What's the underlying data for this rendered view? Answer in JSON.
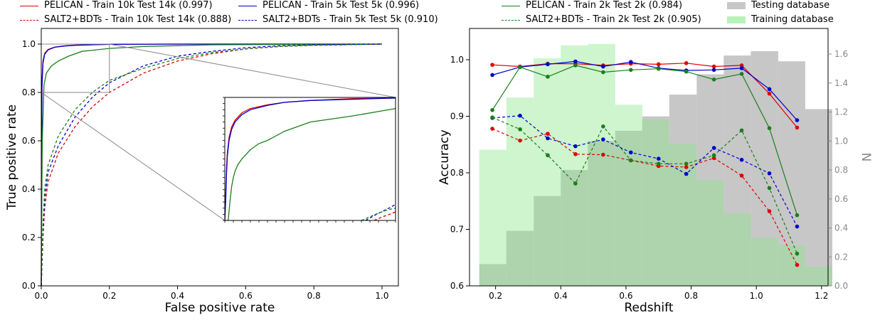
{
  "legend_left": [
    {
      "label": "PELICAN - Train 10k Test 14k (0.997)",
      "color": "#e00000",
      "style": "solid"
    },
    {
      "label": "SALT2+BDTs - Train 10k Test 14k (0.888)",
      "color": "#e00000",
      "style": "dashed"
    },
    {
      "label": "PELICAN - Train 5k Test 5k (0.996)",
      "color": "#0000d0",
      "style": "solid"
    },
    {
      "label": "SALT2+BDTs - Train 5k Test 5k (0.910)",
      "color": "#0000d0",
      "style": "dashed"
    },
    {
      "label": "PELICAN - Train 2k Test 2k (0.984)",
      "color": "#1a7f1a",
      "style": "solid"
    },
    {
      "label": "SALT2+BDTs - Train 2k Test 2k (0.905)",
      "color": "#1a7f1a",
      "style": "dashed"
    }
  ],
  "legend_right": [
    {
      "label": "Testing database",
      "color": "#c8c8c8"
    },
    {
      "label": "Training database",
      "color": "#b8f2b8"
    }
  ],
  "chart_data": [
    {
      "type": "line",
      "xlabel": "False positive rate",
      "ylabel": "True positive rate",
      "xlim": [
        0.0,
        1.05
      ],
      "ylim": [
        0.0,
        1.05
      ],
      "xticks": [
        "0.0",
        "0.2",
        "0.4",
        "0.6",
        "0.8",
        "1.0"
      ],
      "yticks": [
        "0.0",
        "0.2",
        "0.4",
        "0.6",
        "0.8",
        "1.0"
      ],
      "zoom_box": {
        "x": [
          0.0,
          0.2
        ],
        "y": [
          0.8,
          1.0
        ]
      },
      "series": [
        {
          "color": "#e00000",
          "style": "solid",
          "x": [
            0,
            0.002,
            0.005,
            0.01,
            0.02,
            0.04,
            0.07,
            0.1,
            0.15,
            0.2,
            0.4,
            1.0
          ],
          "y": [
            0,
            0.85,
            0.93,
            0.962,
            0.978,
            0.988,
            0.993,
            0.996,
            0.998,
            0.999,
            1.0,
            1.0
          ]
        },
        {
          "color": "#0000d0",
          "style": "solid",
          "x": [
            0,
            0.002,
            0.005,
            0.01,
            0.02,
            0.04,
            0.07,
            0.1,
            0.15,
            0.2,
            0.4,
            1.0
          ],
          "y": [
            0,
            0.82,
            0.92,
            0.958,
            0.976,
            0.987,
            0.992,
            0.995,
            0.997,
            0.999,
            1.0,
            1.0
          ]
        },
        {
          "color": "#1a7f1a",
          "style": "solid",
          "x": [
            0,
            0.003,
            0.008,
            0.015,
            0.03,
            0.05,
            0.08,
            0.12,
            0.2,
            0.3,
            0.5,
            1.0
          ],
          "y": [
            0,
            0.6,
            0.83,
            0.88,
            0.91,
            0.93,
            0.95,
            0.97,
            0.982,
            0.99,
            0.997,
            1.0
          ]
        },
        {
          "color": "#e00000",
          "style": "dashed",
          "x": [
            0,
            0.005,
            0.01,
            0.02,
            0.05,
            0.1,
            0.15,
            0.2,
            0.3,
            0.4,
            0.5,
            0.6,
            0.7,
            0.8,
            1.0
          ],
          "y": [
            0,
            0.2,
            0.32,
            0.43,
            0.55,
            0.66,
            0.74,
            0.8,
            0.88,
            0.93,
            0.96,
            0.98,
            0.99,
            0.995,
            1.0
          ]
        },
        {
          "color": "#0000d0",
          "style": "dashed",
          "x": [
            0,
            0.005,
            0.01,
            0.02,
            0.05,
            0.1,
            0.15,
            0.2,
            0.3,
            0.4,
            0.5,
            0.6,
            0.7,
            0.8,
            1.0
          ],
          "y": [
            0,
            0.22,
            0.36,
            0.47,
            0.58,
            0.7,
            0.78,
            0.84,
            0.91,
            0.95,
            0.97,
            0.985,
            0.993,
            0.997,
            1.0
          ]
        },
        {
          "color": "#1a7f1a",
          "style": "dashed",
          "x": [
            0,
            0.005,
            0.01,
            0.02,
            0.05,
            0.1,
            0.15,
            0.2,
            0.3,
            0.4,
            0.5,
            0.6,
            0.7,
            0.8,
            1.0
          ],
          "y": [
            0,
            0.25,
            0.4,
            0.5,
            0.62,
            0.73,
            0.8,
            0.85,
            0.9,
            0.94,
            0.965,
            0.98,
            0.99,
            0.995,
            1.0
          ]
        }
      ],
      "inset": {
        "xlim": [
          0.0,
          0.2
        ],
        "ylim": [
          0.8,
          1.0
        ],
        "series": [
          {
            "color": "#e00000",
            "style": "solid",
            "x": [
              0.0,
              0.001,
              0.002,
              0.003,
              0.005,
              0.008,
              0.012,
              0.02,
              0.03,
              0.05,
              0.07,
              0.1,
              0.15,
              0.2
            ],
            "y": [
              0.8,
              0.84,
              0.885,
              0.91,
              0.935,
              0.952,
              0.963,
              0.975,
              0.982,
              0.988,
              0.992,
              0.995,
              0.998,
              0.999
            ]
          },
          {
            "color": "#0000d0",
            "style": "solid",
            "x": [
              0.0,
              0.001,
              0.002,
              0.003,
              0.005,
              0.008,
              0.012,
              0.02,
              0.03,
              0.05,
              0.07,
              0.1,
              0.15,
              0.2
            ],
            "y": [
              0.8,
              0.83,
              0.875,
              0.905,
              0.93,
              0.948,
              0.96,
              0.972,
              0.98,
              0.987,
              0.992,
              0.995,
              0.997,
              0.999
            ]
          },
          {
            "color": "#1a7f1a",
            "style": "solid",
            "x": [
              0.0,
              0.004,
              0.006,
              0.008,
              0.01,
              0.012,
              0.015,
              0.02,
              0.03,
              0.04,
              0.05,
              0.07,
              0.1,
              0.15,
              0.2
            ],
            "y": [
              0.8,
              0.8,
              0.83,
              0.855,
              0.87,
              0.88,
              0.89,
              0.9,
              0.915,
              0.925,
              0.93,
              0.945,
              0.96,
              0.97,
              0.982
            ]
          },
          {
            "color": "#0000d0",
            "style": "dashed",
            "x": [
              0.165,
              0.175,
              0.185,
              0.195,
              0.2
            ],
            "y": [
              0.8,
              0.808,
              0.815,
              0.822,
              0.826
            ]
          },
          {
            "color": "#1a7f1a",
            "style": "dashed",
            "x": [
              0.16,
              0.17,
              0.18,
              0.19,
              0.2
            ],
            "y": [
              0.8,
              0.806,
              0.812,
              0.817,
              0.82
            ]
          },
          {
            "color": "#e00000",
            "style": "dashed",
            "x": [
              0.175,
              0.185,
              0.195,
              0.2
            ],
            "y": [
              0.8,
              0.806,
              0.811,
              0.814
            ]
          }
        ]
      }
    },
    {
      "type": "line",
      "xlabel": "Redshift",
      "ylabel": "Accuracy",
      "ylabel_right": "N",
      "xlim": [
        0.12,
        1.22
      ],
      "ylim": [
        0.6,
        1.05
      ],
      "ylim_right": [
        0.0,
        1.75
      ],
      "xticks": [
        "0.2",
        "0.4",
        "0.6",
        "0.8",
        "1.0",
        "1.2"
      ],
      "yticks": [
        "0.6",
        "0.7",
        "0.8",
        "0.9",
        "1.0"
      ],
      "yticks_right": [
        "0.0",
        "0.2",
        "0.4",
        "0.6",
        "0.8",
        "1.0",
        "1.2",
        "1.4",
        "1.6"
      ],
      "hist_bin_edges": [
        0.15,
        0.233,
        0.317,
        0.4,
        0.483,
        0.567,
        0.65,
        0.733,
        0.817,
        0.9,
        0.983,
        1.067,
        1.15,
        1.233
      ],
      "hist_testing": [
        0.15,
        0.38,
        0.62,
        0.8,
        1.0,
        1.07,
        1.17,
        1.32,
        1.46,
        1.59,
        1.62,
        1.55,
        1.22
      ],
      "hist_training": [
        0.94,
        1.3,
        1.57,
        1.66,
        1.67,
        1.25,
        1.15,
        0.98,
        0.73,
        0.5,
        0.33,
        0.28,
        0.13
      ],
      "series": [
        {
          "color": "#e00000",
          "style": "solid",
          "x": [
            0.19,
            0.275,
            0.36,
            0.445,
            0.53,
            0.615,
            0.7,
            0.785,
            0.87,
            0.955,
            1.04,
            1.125
          ],
          "y": [
            0.991,
            0.988,
            0.993,
            0.993,
            0.99,
            0.993,
            0.992,
            0.994,
            0.988,
            0.99,
            0.94,
            0.88
          ]
        },
        {
          "color": "#0000d0",
          "style": "solid",
          "x": [
            0.19,
            0.275,
            0.36,
            0.445,
            0.53,
            0.615,
            0.7,
            0.785,
            0.87,
            0.955,
            1.04,
            1.125
          ],
          "y": [
            0.973,
            0.987,
            0.992,
            0.997,
            0.988,
            0.996,
            0.985,
            0.981,
            0.982,
            0.985,
            0.948,
            0.893
          ]
        },
        {
          "color": "#1a7f1a",
          "style": "solid",
          "x": [
            0.19,
            0.275,
            0.36,
            0.445,
            0.53,
            0.615,
            0.7,
            0.785,
            0.87,
            0.955,
            1.04,
            1.125
          ],
          "y": [
            0.911,
            0.987,
            0.97,
            0.99,
            0.978,
            0.982,
            0.984,
            0.979,
            0.965,
            0.975,
            0.879,
            0.725
          ]
        },
        {
          "color": "#e00000",
          "style": "dashed",
          "x": [
            0.19,
            0.275,
            0.36,
            0.445,
            0.53,
            0.615,
            0.7,
            0.785,
            0.87,
            0.955,
            1.04,
            1.125
          ],
          "y": [
            0.878,
            0.857,
            0.869,
            0.833,
            0.832,
            0.822,
            0.812,
            0.81,
            0.826,
            0.795,
            0.732,
            0.637
          ]
        },
        {
          "color": "#0000d0",
          "style": "dashed",
          "x": [
            0.19,
            0.275,
            0.36,
            0.445,
            0.53,
            0.615,
            0.7,
            0.785,
            0.87,
            0.955,
            1.04,
            1.125
          ],
          "y": [
            0.897,
            0.901,
            0.861,
            0.847,
            0.859,
            0.836,
            0.825,
            0.798,
            0.844,
            0.823,
            0.799,
            0.705
          ]
        },
        {
          "color": "#1a7f1a",
          "style": "dashed",
          "x": [
            0.19,
            0.275,
            0.36,
            0.445,
            0.53,
            0.615,
            0.7,
            0.785,
            0.87,
            0.955,
            1.04,
            1.125
          ],
          "y": [
            0.898,
            0.877,
            0.831,
            0.781,
            0.882,
            0.822,
            0.816,
            0.816,
            0.831,
            0.875,
            0.773,
            0.657
          ]
        }
      ]
    }
  ]
}
